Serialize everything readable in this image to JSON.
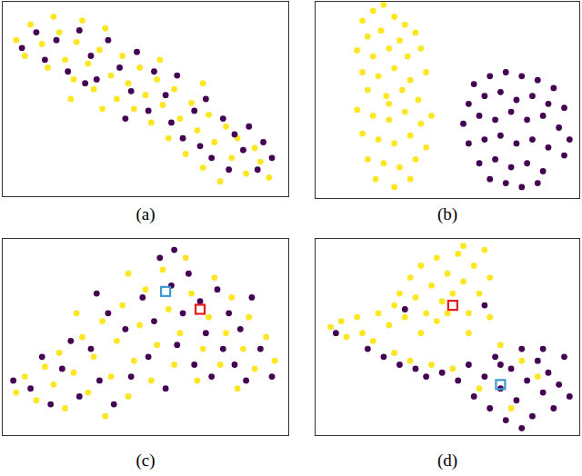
{
  "chart_data": [
    {
      "type": "scatter",
      "title": "(a)",
      "xlim": [
        0,
        100
      ],
      "ylim": [
        0,
        100
      ],
      "tick_labels": false,
      "series": [
        {
          "color": "#fde725",
          "x": [
            5,
            8,
            10,
            14,
            16,
            18,
            20,
            22,
            25,
            26,
            28,
            30,
            32,
            34,
            36,
            38,
            40,
            42,
            44,
            46,
            48,
            50,
            52,
            54,
            56,
            58,
            60,
            62,
            64,
            66,
            68,
            70,
            72,
            74,
            76,
            78,
            80,
            82,
            85,
            88,
            90,
            93,
            35,
            55,
            24,
            70
          ],
          "values": [
            80,
            72,
            88,
            78,
            66,
            92,
            84,
            70,
            60,
            79,
            90,
            68,
            55,
            75,
            86,
            62,
            50,
            72,
            58,
            45,
            66,
            52,
            38,
            60,
            47,
            30,
            55,
            40,
            22,
            48,
            34,
            15,
            42,
            28,
            8,
            36,
            20,
            30,
            12,
            25,
            18,
            10,
            45,
            70,
            50,
            58
          ]
        },
        {
          "color": "#440154",
          "x": [
            7,
            12,
            15,
            19,
            23,
            27,
            31,
            33,
            37,
            41,
            45,
            47,
            51,
            53,
            57,
            59,
            61,
            63,
            67,
            69,
            71,
            73,
            77,
            79,
            81,
            84,
            86,
            89,
            91,
            94,
            43,
            29
          ],
          "values": [
            76,
            84,
            70,
            80,
            64,
            85,
            72,
            60,
            80,
            66,
            54,
            74,
            44,
            64,
            52,
            38,
            62,
            30,
            44,
            26,
            50,
            20,
            40,
            14,
            32,
            24,
            36,
            14,
            28,
            20,
            40,
            58
          ]
        }
      ]
    },
    {
      "type": "scatter",
      "title": "(b)",
      "xlim": [
        0,
        100
      ],
      "ylim": [
        0,
        100
      ],
      "tick_labels": false,
      "series": [
        {
          "color": "#fde725",
          "x": [
            18,
            22,
            26,
            30,
            34,
            20,
            25,
            32,
            38,
            16,
            22,
            28,
            35,
            40,
            18,
            24,
            30,
            36,
            42,
            20,
            27,
            33,
            39,
            16,
            22,
            28,
            34,
            40,
            44,
            18,
            24,
            30,
            36,
            42,
            20,
            26,
            32,
            38,
            23,
            30,
            36,
            28
          ],
          "values": [
            90,
            95,
            98,
            92,
            88,
            82,
            85,
            80,
            84,
            75,
            72,
            76,
            72,
            76,
            64,
            62,
            66,
            60,
            64,
            55,
            52,
            55,
            50,
            45,
            42,
            40,
            44,
            38,
            42,
            33,
            30,
            28,
            32,
            26,
            20,
            18,
            16,
            20,
            10,
            6,
            10,
            48
          ]
        },
        {
          "color": "#440154",
          "x": [
            60,
            66,
            72,
            78,
            84,
            90,
            58,
            64,
            70,
            76,
            82,
            88,
            94,
            56,
            62,
            68,
            74,
            80,
            86,
            92,
            96,
            58,
            64,
            70,
            76,
            82,
            88,
            94,
            62,
            68,
            74,
            80,
            86,
            72,
            78,
            84,
            66
          ],
          "values": [
            58,
            62,
            64,
            62,
            60,
            56,
            48,
            52,
            54,
            50,
            52,
            48,
            46,
            38,
            42,
            40,
            44,
            40,
            42,
            36,
            30,
            28,
            30,
            32,
            28,
            30,
            26,
            22,
            18,
            20,
            16,
            18,
            14,
            8,
            6,
            8,
            10
          ]
        }
      ]
    },
    {
      "type": "scatter",
      "title": "(c)",
      "xlim": [
        0,
        100
      ],
      "ylim": [
        0,
        100
      ],
      "tick_labels": false,
      "series": [
        {
          "color": "#fde725",
          "x": [
            5,
            8,
            12,
            15,
            18,
            20,
            22,
            25,
            28,
            30,
            32,
            35,
            36,
            38,
            40,
            42,
            44,
            46,
            48,
            50,
            52,
            54,
            56,
            58,
            60,
            62,
            64,
            66,
            68,
            70,
            72,
            74,
            76,
            78,
            80,
            82,
            84,
            86,
            88,
            92,
            95,
            26,
            44
          ],
          "values": [
            22,
            30,
            18,
            35,
            26,
            42,
            14,
            32,
            50,
            22,
            40,
            58,
            10,
            30,
            48,
            66,
            20,
            38,
            56,
            74,
            28,
            46,
            84,
            64,
            36,
            52,
            90,
            72,
            28,
            44,
            60,
            80,
            36,
            52,
            70,
            24,
            44,
            60,
            34,
            50,
            38,
            62,
            82
          ]
        },
        {
          "color": "#440154",
          "x": [
            4,
            10,
            14,
            17,
            21,
            24,
            27,
            31,
            34,
            37,
            39,
            43,
            45,
            49,
            51,
            53,
            55,
            57,
            59,
            61,
            63,
            65,
            67,
            69,
            71,
            73,
            75,
            77,
            79,
            81,
            83,
            85,
            87,
            90,
            94,
            60,
            33
          ],
          "values": [
            28,
            24,
            40,
            16,
            34,
            48,
            20,
            44,
            28,
            62,
            16,
            54,
            30,
            70,
            40,
            58,
            90,
            24,
            76,
            46,
            62,
            82,
            36,
            68,
            52,
            30,
            74,
            44,
            62,
            36,
            54,
            28,
            70,
            44,
            30,
            94,
            72
          ]
        },
        {
          "color": "#3d9ad1",
          "marker": "square",
          "x": [
            57
          ],
          "values": [
            73
          ]
        },
        {
          "color": "#e41a1c",
          "marker": "square",
          "x": [
            69
          ],
          "values": [
            64
          ]
        }
      ]
    },
    {
      "type": "scatter",
      "title": "(d)",
      "xlim": [
        0,
        100
      ],
      "ylim": [
        0,
        100
      ],
      "tick_labels": false,
      "series": [
        {
          "color": "#fde725",
          "x": [
            6,
            10,
            12,
            16,
            18,
            22,
            24,
            28,
            30,
            32,
            34,
            36,
            38,
            40,
            42,
            44,
            46,
            48,
            50,
            52,
            54,
            56,
            58,
            60,
            62,
            64,
            66,
            46,
            50,
            30,
            36,
            44,
            52,
            40,
            58,
            66,
            70,
            78,
            84,
            62,
            74,
            56
          ],
          "values": [
            55,
            58,
            50,
            60,
            52,
            48,
            62,
            56,
            66,
            72,
            60,
            80,
            70,
            86,
            62,
            76,
            90,
            68,
            82,
            72,
            92,
            78,
            62,
            86,
            72,
            94,
            80,
            58,
            62,
            42,
            38,
            36,
            34,
            52,
            52,
            60,
            46,
            38,
            30,
            24,
            14,
            96
          ]
        },
        {
          "color": "#440154",
          "x": [
            8,
            20,
            26,
            32,
            38,
            42,
            48,
            54,
            58,
            60,
            64,
            66,
            68,
            70,
            72,
            74,
            76,
            78,
            80,
            82,
            84,
            86,
            88,
            90,
            92,
            94,
            96,
            78,
            70,
            86,
            34,
            64
          ],
          "values": [
            52,
            44,
            40,
            36,
            34,
            30,
            32,
            28,
            36,
            20,
            30,
            14,
            40,
            24,
            8,
            34,
            18,
            44,
            28,
            10,
            38,
            22,
            32,
            14,
            26,
            40,
            20,
            4,
            36,
            44,
            64,
            66
          ]
        },
        {
          "color": "#e41a1c",
          "marker": "square",
          "x": [
            52
          ],
          "values": [
            66
          ]
        },
        {
          "color": "#3d9ad1",
          "marker": "square",
          "x": [
            70
          ],
          "values": [
            26
          ]
        }
      ]
    }
  ]
}
